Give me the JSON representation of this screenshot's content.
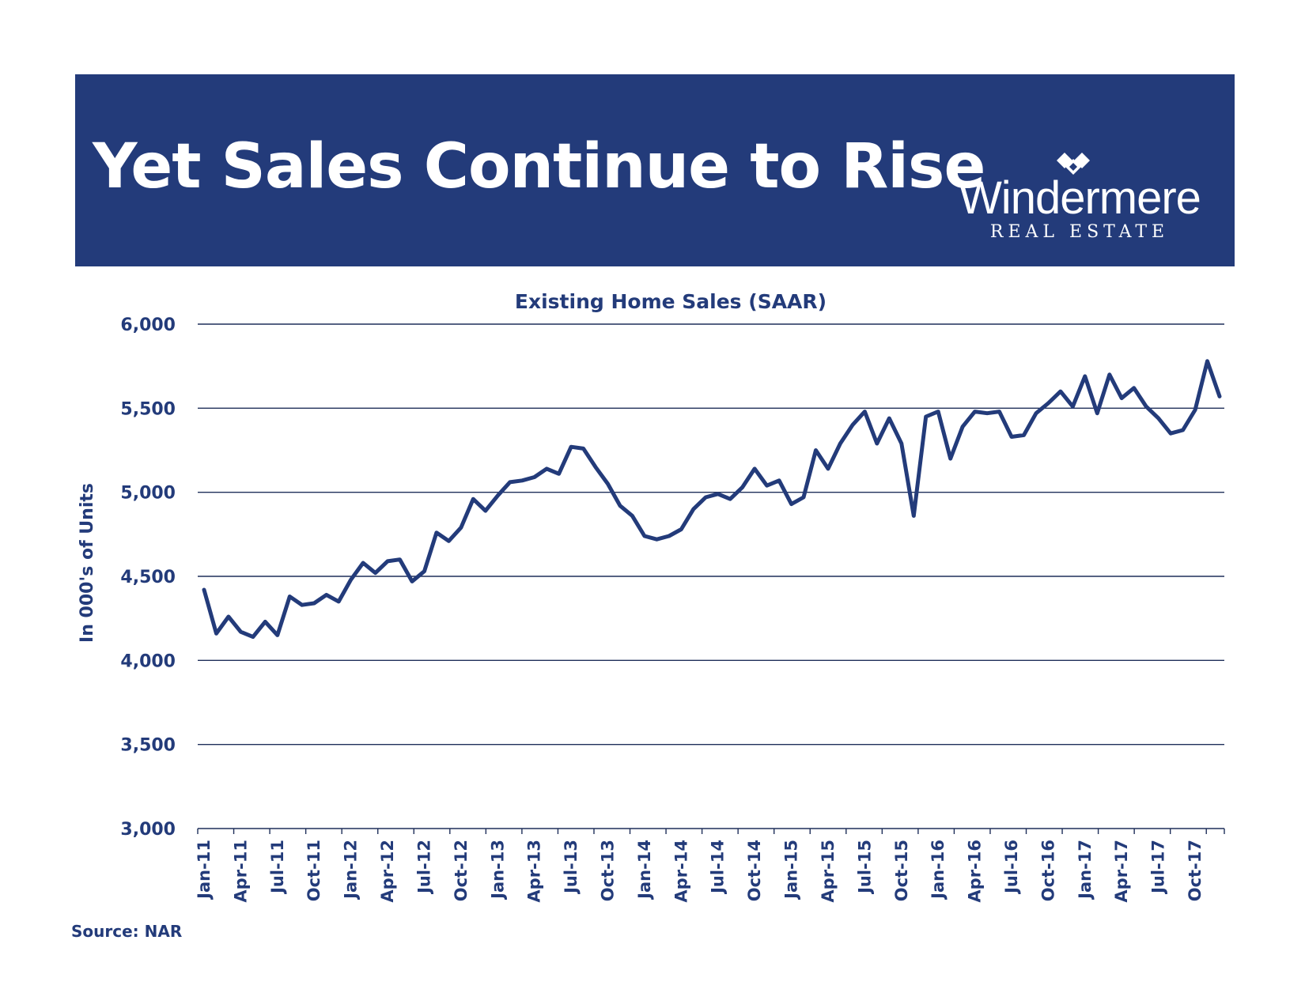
{
  "banner": {
    "title": "Yet Sales Continue to Rise",
    "logo_name": "Windermere",
    "logo_sub": "REAL ESTATE",
    "logo_icon": "windermere-diamond-logo-icon"
  },
  "source": "Source: NAR",
  "colors": {
    "brand": "#233b7a",
    "background": "#ffffff",
    "line": "#233b7a"
  },
  "chart_data": {
    "type": "line",
    "title": "Existing Home Sales (SAAR)",
    "xlabel": "",
    "ylabel": "In 000's of Units",
    "ylim": [
      3000,
      6000
    ],
    "yticks": [
      3000,
      3500,
      4000,
      4500,
      5000,
      5500,
      6000
    ],
    "ytick_labels": [
      "3,000",
      "3,500",
      "4,000",
      "4,500",
      "5,000",
      "5,500",
      "6,000"
    ],
    "x_tick_labels": [
      "Jan-11",
      "Apr-11",
      "Jul-11",
      "Oct-11",
      "Jan-12",
      "Apr-12",
      "Jul-12",
      "Oct-12",
      "Jan-13",
      "Apr-13",
      "Jul-13",
      "Oct-13",
      "Jan-14",
      "Apr-14",
      "Jul-14",
      "Oct-14",
      "Jan-15",
      "Apr-15",
      "Jul-15",
      "Oct-15",
      "Jan-16",
      "Apr-16",
      "Jul-16",
      "Oct-16",
      "Jan-17",
      "Apr-17",
      "Jul-17",
      "Oct-17"
    ],
    "grid": true,
    "legend": "none",
    "series": [
      {
        "x": [
          "Jan-11",
          "Feb-11",
          "Mar-11",
          "Apr-11",
          "May-11",
          "Jun-11",
          "Jul-11",
          "Aug-11",
          "Sep-11",
          "Oct-11",
          "Nov-11",
          "Dec-11",
          "Jan-12",
          "Feb-12",
          "Mar-12",
          "Apr-12",
          "May-12",
          "Jun-12",
          "Jul-12",
          "Aug-12",
          "Sep-12",
          "Oct-12",
          "Nov-12",
          "Dec-12",
          "Jan-13",
          "Feb-13",
          "Mar-13",
          "Apr-13",
          "May-13",
          "Jun-13",
          "Jul-13",
          "Aug-13",
          "Sep-13",
          "Oct-13",
          "Nov-13",
          "Dec-13",
          "Jan-14",
          "Feb-14",
          "Mar-14",
          "Apr-14",
          "May-14",
          "Jun-14",
          "Jul-14",
          "Aug-14",
          "Sep-14",
          "Oct-14",
          "Nov-14",
          "Dec-14",
          "Jan-15",
          "Feb-15",
          "Mar-15",
          "Apr-15",
          "May-15",
          "Jun-15",
          "Jul-15",
          "Aug-15",
          "Sep-15",
          "Oct-15",
          "Nov-15",
          "Dec-15",
          "Jan-16",
          "Feb-16",
          "Mar-16",
          "Apr-16",
          "May-16",
          "Jun-16",
          "Jul-16",
          "Aug-16",
          "Sep-16",
          "Oct-16",
          "Nov-16",
          "Dec-16",
          "Jan-17",
          "Feb-17",
          "Mar-17",
          "Apr-17",
          "May-17",
          "Jun-17",
          "Jul-17",
          "Aug-17",
          "Sep-17",
          "Oct-17",
          "Nov-17",
          "Dec-17"
        ],
        "values": [
          4420,
          4160,
          4260,
          4170,
          4140,
          4230,
          4150,
          4380,
          4330,
          4340,
          4390,
          4350,
          4480,
          4580,
          4520,
          4590,
          4600,
          4470,
          4530,
          4760,
          4710,
          4790,
          4960,
          4890,
          4980,
          5060,
          5070,
          5090,
          5140,
          5110,
          5270,
          5260,
          5150,
          5050,
          4920,
          4860,
          4740,
          4720,
          4740,
          4780,
          4900,
          4970,
          4990,
          4960,
          5030,
          5140,
          5040,
          5070,
          4930,
          4970,
          5250,
          5140,
          5290,
          5400,
          5480,
          5290,
          5440,
          5290,
          4860,
          5450,
          5480,
          5200,
          5390,
          5480,
          5470,
          5480,
          5330,
          5340,
          5470,
          5530,
          5600,
          5510,
          5690,
          5470,
          5700,
          5560,
          5620,
          5510,
          5440,
          5350,
          5370,
          5490,
          5780,
          5570
        ]
      }
    ]
  }
}
